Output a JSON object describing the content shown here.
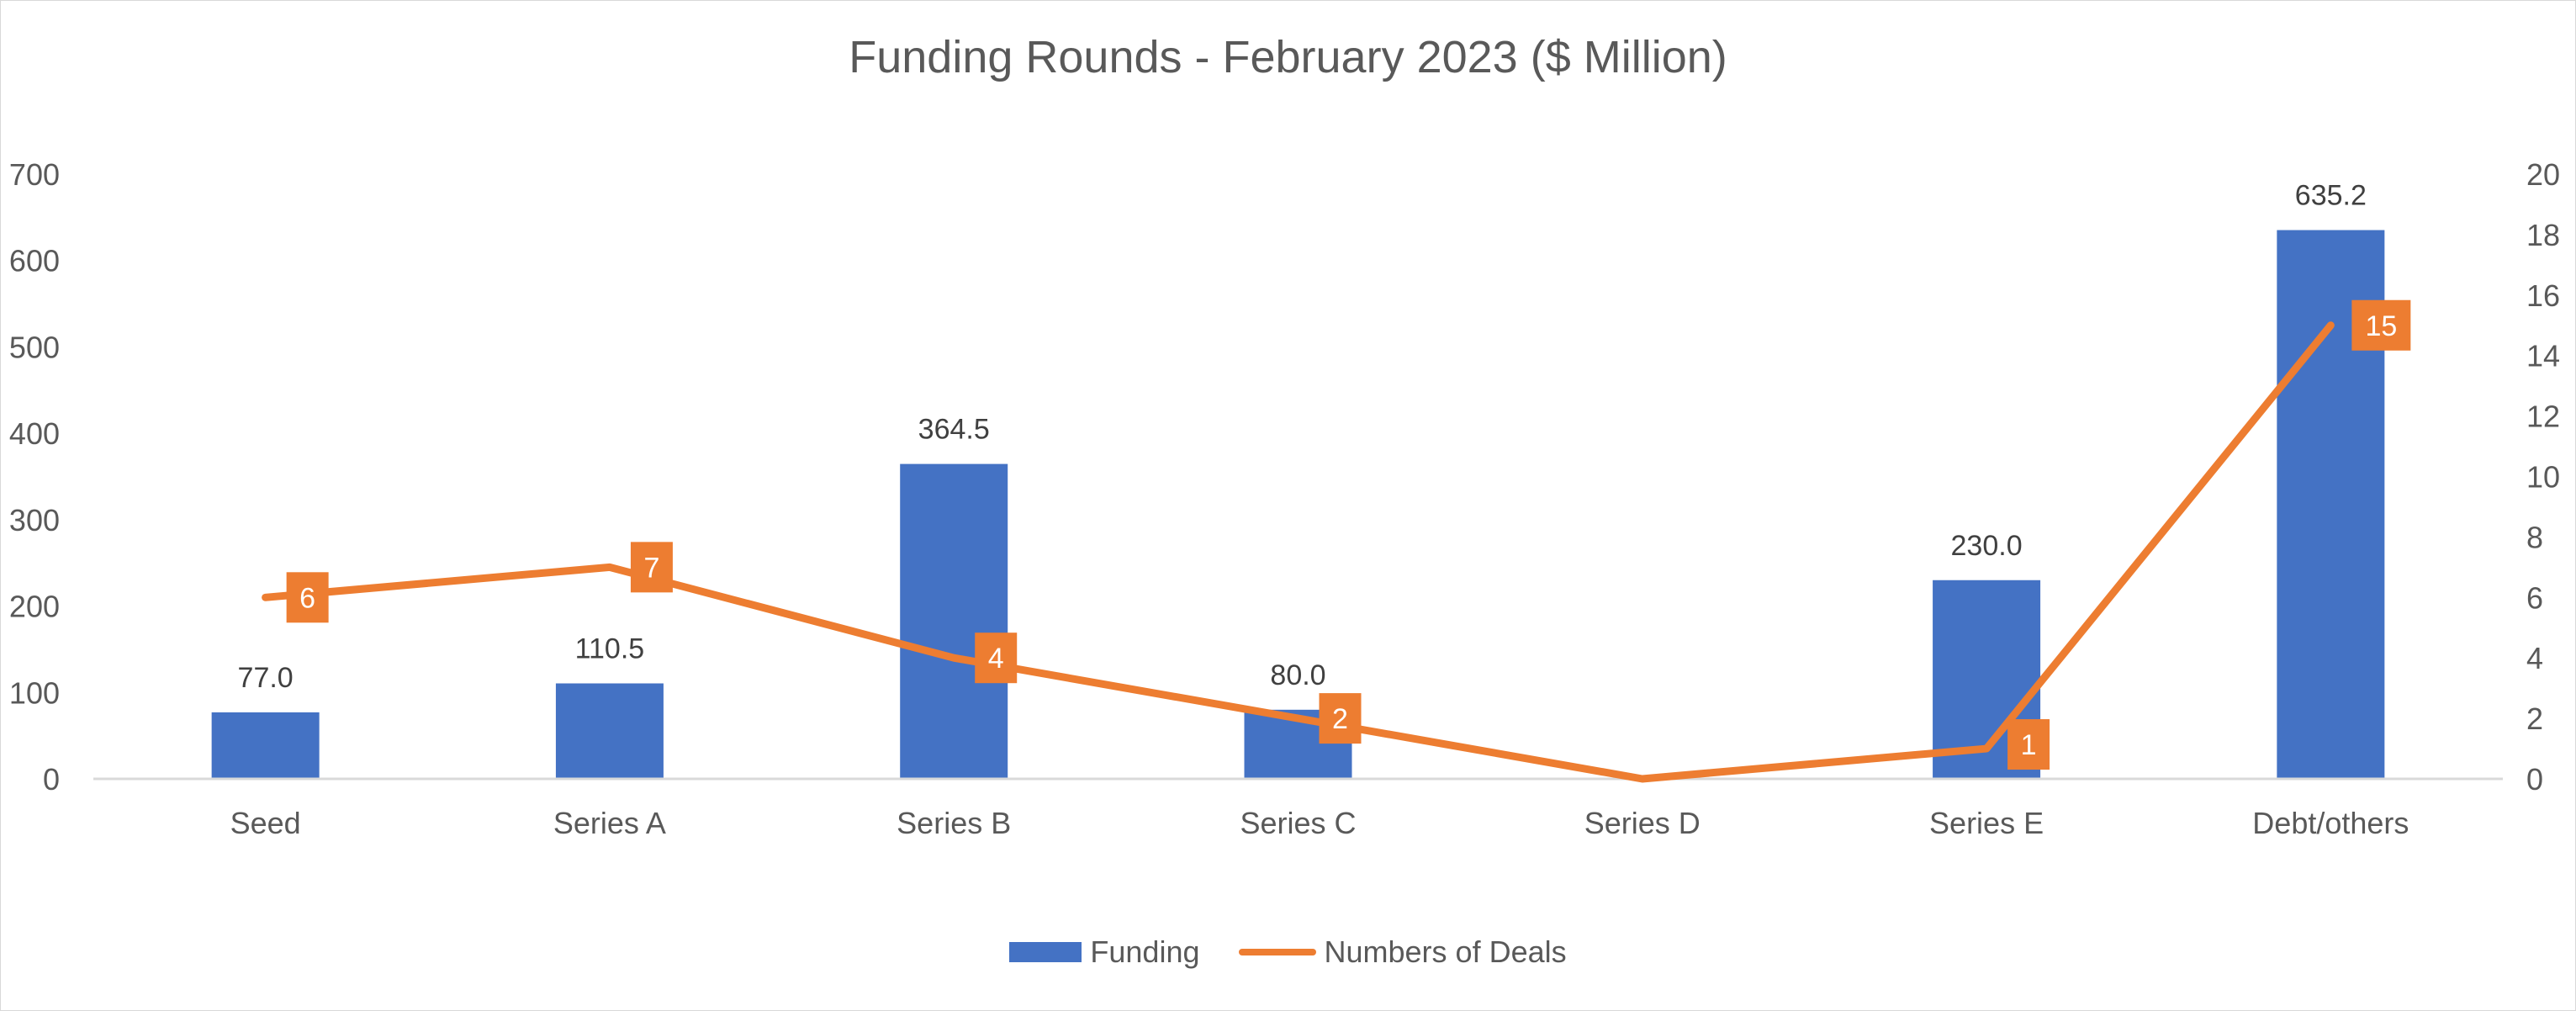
{
  "chart_data": {
    "type": "bar+line",
    "title": "Funding Rounds - February 2023 ($ Million)",
    "categories": [
      "Seed",
      "Series A",
      "Series B",
      "Series C",
      "Series D",
      "Series E",
      "Debt/others"
    ],
    "series": [
      {
        "name": "Funding",
        "type": "bar",
        "axis": "left",
        "color": "#4472c4",
        "values": [
          77.0,
          110.5,
          364.5,
          80.0,
          0,
          230.0,
          635.2
        ],
        "labels": [
          "77.0",
          "110.5",
          "364.5",
          "80.0",
          "",
          "230.0",
          "635.2"
        ]
      },
      {
        "name": "Numbers of Deals",
        "type": "line",
        "axis": "right",
        "color": "#ed7d31",
        "values": [
          6,
          7,
          4,
          2,
          0,
          1,
          15
        ],
        "labels": [
          "6",
          "7",
          "4",
          "2",
          "",
          "1",
          "15"
        ]
      }
    ],
    "y_left": {
      "min": 0,
      "max": 700,
      "step": 100,
      "ticks": [
        "0",
        "100",
        "200",
        "300",
        "400",
        "500",
        "600",
        "700"
      ]
    },
    "y_right": {
      "min": 0,
      "max": 20,
      "step": 2,
      "ticks": [
        "0",
        "2",
        "4",
        "6",
        "8",
        "10",
        "12",
        "14",
        "16",
        "18",
        "20"
      ]
    },
    "xlabel": "",
    "ylabel": "",
    "grid": false,
    "legend_position": "bottom"
  },
  "legend": {
    "funding_label": "Funding",
    "deals_label": "Numbers of Deals"
  }
}
